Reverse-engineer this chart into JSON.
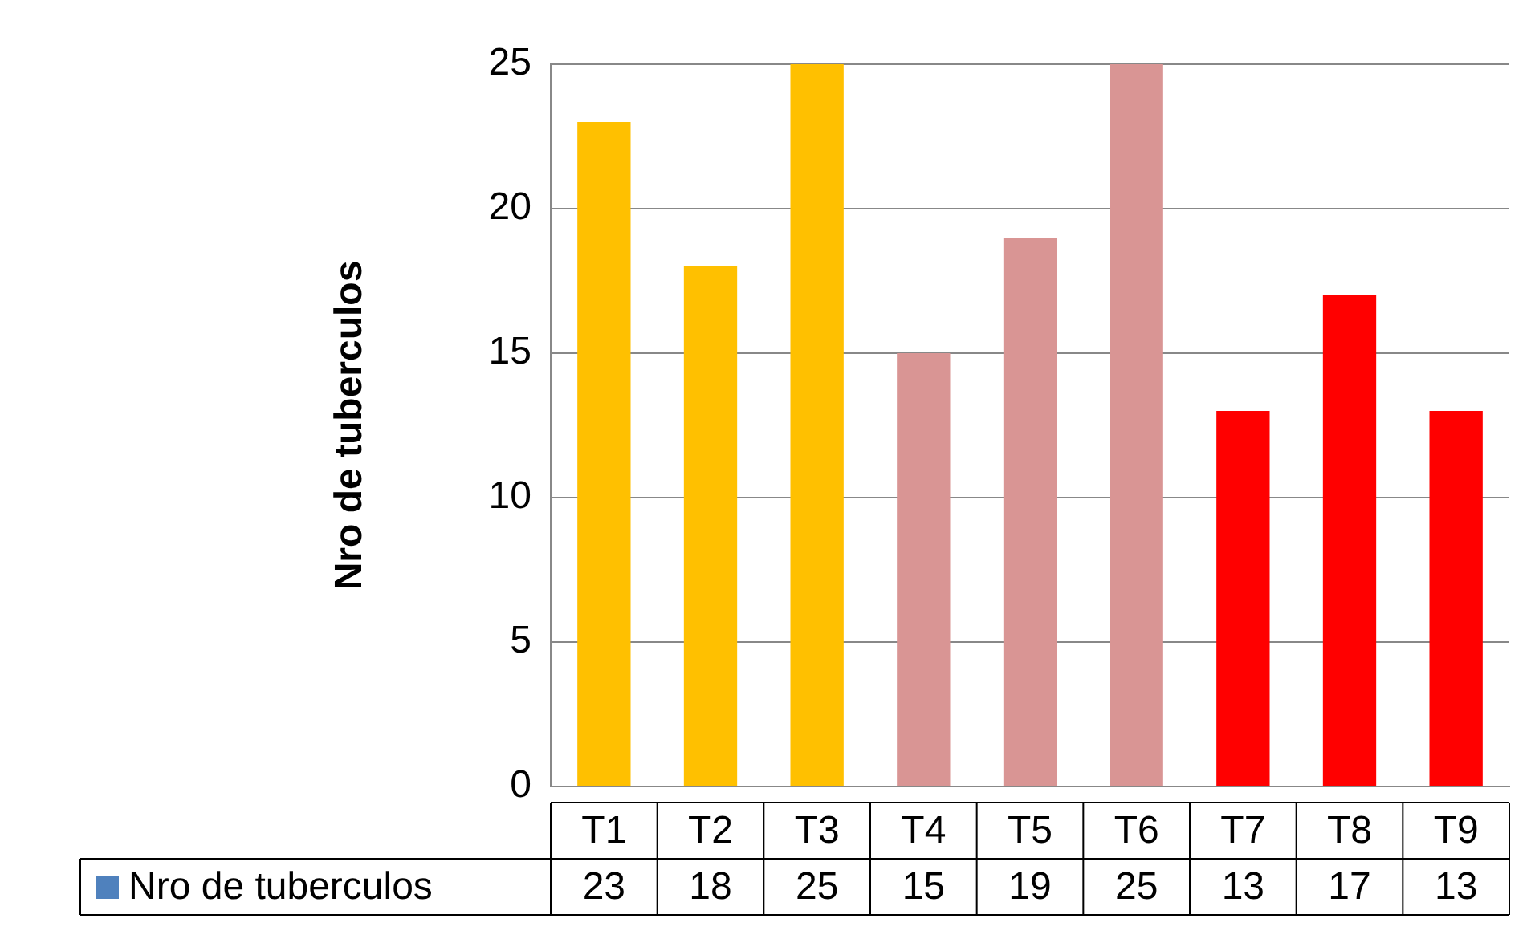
{
  "chart_data": {
    "type": "bar",
    "ylabel": "Nro de tuberculos",
    "categories": [
      "T1",
      "T2",
      "T3",
      "T4",
      "T5",
      "T6",
      "T7",
      "T8",
      "T9"
    ],
    "series": [
      {
        "name": "Nro de tuberculos",
        "color": "#4f81bd",
        "colors": [
          "#ffc000",
          "#ffc000",
          "#ffc000",
          "#d99594",
          "#d99594",
          "#d99594",
          "#ff0000",
          "#ff0000",
          "#ff0000"
        ],
        "values": [
          23,
          18,
          25,
          15,
          19,
          25,
          13,
          17,
          13
        ]
      }
    ],
    "ylim": [
      0,
      25
    ],
    "yticks": [
      0,
      5,
      10,
      15,
      20,
      25
    ],
    "grid": "y",
    "data_labels": true,
    "legend": "bottom"
  }
}
